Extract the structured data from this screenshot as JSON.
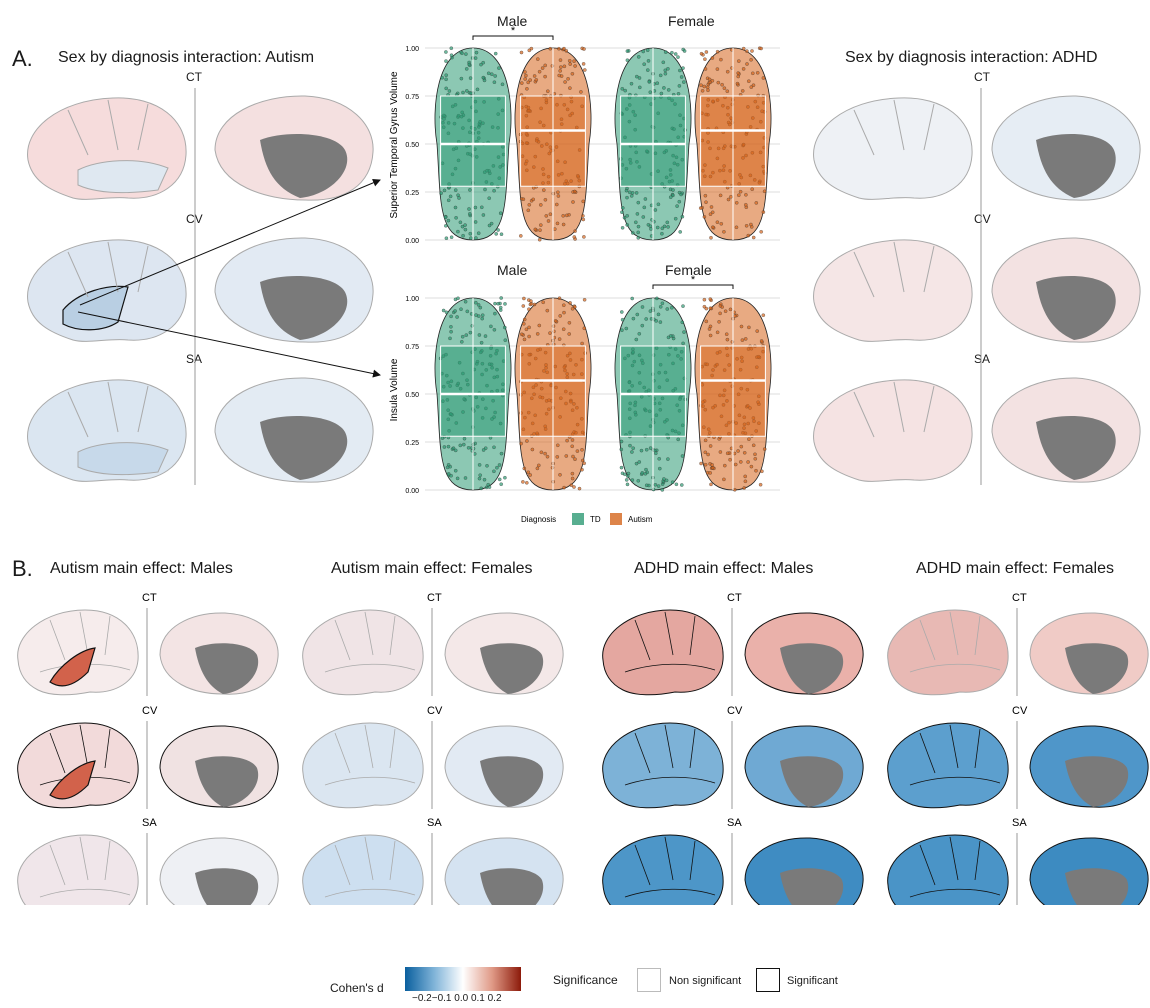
{
  "panel_a": {
    "letter": "A.",
    "autism_title": "Sex by diagnosis interaction: Autism",
    "adhd_title": "Sex by diagnosis interaction: ADHD",
    "rows": [
      "CT",
      "CV",
      "SA"
    ]
  },
  "violin": {
    "top": {
      "ylabel": "Superior Temporal Gyrus Volume",
      "facets": [
        "Male",
        "Female"
      ],
      "significance": "*"
    },
    "bottom": {
      "ylabel": "Insula Volume",
      "facets": [
        "Male",
        "Female"
      ],
      "significance": "*"
    },
    "yticks": [
      "1.00",
      "0.75",
      "0.50",
      "0.25",
      "0.00"
    ],
    "legend_title": "Diagnosis",
    "legend_items": [
      "TD",
      "Autism"
    ],
    "colors": {
      "td": "#2e9a74",
      "autism": "#d5651c"
    }
  },
  "panel_b": {
    "letter": "B.",
    "titles": [
      "Autism main effect: Males",
      "Autism main effect: Females",
      "ADHD main effect: Males",
      "ADHD main effect: Females"
    ],
    "rows": [
      "CT",
      "CV",
      "SA"
    ]
  },
  "legend": {
    "cohens_label": "Cohen's d",
    "cohens_ticks": "−0.2−0.1 0.0 0.1 0.2",
    "significance_label": "Significance",
    "non_significant": "Non significant",
    "significant": "Significant",
    "colors": {
      "neg": "#0a5f9e",
      "mid": "#ffffff",
      "pos": "#8c1a0a"
    }
  }
}
